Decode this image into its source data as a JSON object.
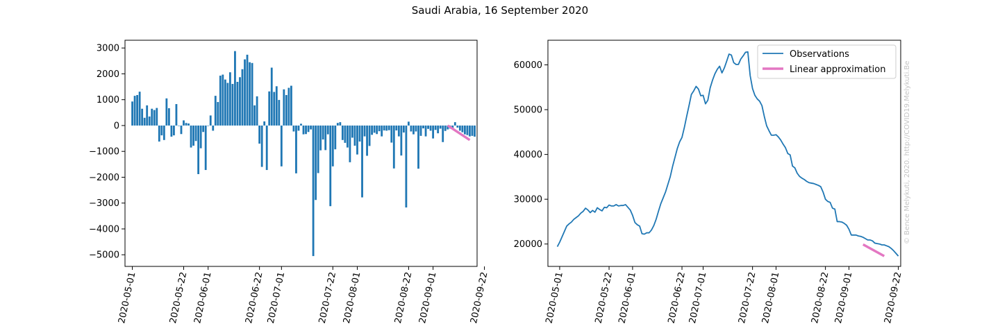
{
  "figure": {
    "title": "Saudi Arabia, 16 September 2020",
    "watermark": "© Bence Melykuti, 2020. http://COVID19.Melykuti.Be"
  },
  "colors": {
    "bars": "#1f77b4",
    "observations": "#1f77b4",
    "approximation": "#e377c2"
  },
  "date_ticks": [
    "2020-05-01",
    "2020-05-22",
    "2020-06-01",
    "2020-06-22",
    "2020-07-01",
    "2020-07-22",
    "2020-08-01",
    "2020-08-22",
    "2020-09-01",
    "2020-09-22"
  ],
  "chart_data": [
    {
      "type": "bar",
      "title": "",
      "xlabel": "",
      "ylabel": "",
      "x_start": "2020-05-01",
      "x_end": "2020-09-16",
      "xlim": [
        "2020-04-28",
        "2020-09-19"
      ],
      "ylim": [
        -5450,
        3300
      ],
      "yticks": [
        3000,
        2000,
        1000,
        0,
        -1000,
        -2000,
        -3000,
        -4000,
        -5000
      ],
      "ytick_labels": [
        "3000",
        "2000",
        "1000",
        "0",
        "−1000",
        "−2000",
        "−3000",
        "−4000",
        "−5000"
      ],
      "grid": false,
      "values": [
        930,
        1150,
        1180,
        1310,
        650,
        300,
        780,
        350,
        650,
        600,
        680,
        -620,
        -380,
        -560,
        1050,
        670,
        -430,
        -380,
        830,
        0,
        -330,
        200,
        100,
        80,
        -850,
        -780,
        -600,
        -1880,
        -880,
        -250,
        -1720,
        0,
        390,
        -200,
        1150,
        910,
        1930,
        1970,
        1780,
        1650,
        2060,
        1610,
        2880,
        1690,
        1870,
        2180,
        2560,
        2740,
        2450,
        2420,
        780,
        1130,
        -700,
        -1600,
        160,
        -1720,
        1320,
        2240,
        1300,
        1520,
        990,
        -1580,
        1400,
        1180,
        1460,
        1540,
        -230,
        -1850,
        -200,
        70,
        -340,
        -330,
        -250,
        -150,
        -5050,
        -2880,
        -1840,
        -960,
        -540,
        -950,
        -340,
        -3120,
        -1580,
        -920,
        100,
        130,
        -560,
        -670,
        -850,
        -1420,
        -470,
        -780,
        -1120,
        -620,
        -2780,
        -420,
        -1170,
        -790,
        -360,
        -280,
        -330,
        -220,
        -420,
        -190,
        -200,
        -180,
        -660,
        -1660,
        -190,
        -420,
        -1160,
        -270,
        -3170,
        150,
        -230,
        -340,
        -230,
        -1670,
        -400,
        -110,
        -420,
        -130,
        -200,
        -500,
        -170,
        -300,
        -120,
        -640,
        -210,
        -150,
        -120,
        -100,
        130,
        -80,
        -200,
        -260,
        -340,
        -370,
        -420,
        -400,
        -430
      ],
      "approx_start": "2020-09-07",
      "approx_end": "2020-09-16",
      "approx_values": [
        0,
        -560
      ]
    },
    {
      "type": "line",
      "title": "",
      "xlabel": "",
      "ylabel": "",
      "xlim": [
        "2020-04-26",
        "2020-09-23"
      ],
      "ylim": [
        15000,
        65500
      ],
      "yticks": [
        60000,
        50000,
        40000,
        30000,
        20000
      ],
      "ytick_labels": [
        "60000",
        "50000",
        "40000",
        "30000",
        "20000"
      ],
      "grid": false,
      "legend": "upper-right",
      "series": [
        {
          "name": "Observations",
          "x_start": "2020-04-30",
          "values": [
            19400,
            20400,
            21600,
            22800,
            24000,
            24500,
            24900,
            25500,
            25900,
            26300,
            26900,
            27300,
            28000,
            27600,
            27000,
            27500,
            27100,
            28100,
            27700,
            27400,
            28200,
            28100,
            28700,
            28500,
            28500,
            28800,
            28500,
            28600,
            28600,
            28800,
            28200,
            27600,
            26400,
            24800,
            24300,
            24000,
            22300,
            22200,
            22500,
            22500,
            23100,
            24100,
            25500,
            27300,
            29000,
            30300,
            31600,
            33300,
            35000,
            37300,
            39300,
            41300,
            42800,
            43800,
            46000,
            48500,
            50900,
            53400,
            54200,
            55200,
            54600,
            53100,
            53200,
            51300,
            52100,
            54900,
            56600,
            58000,
            59000,
            59700,
            58200,
            59300,
            60800,
            62400,
            62200,
            60500,
            60100,
            60100,
            61300,
            62000,
            62800,
            62900,
            57600,
            54700,
            53200,
            52400,
            51900,
            50900,
            48500,
            46400,
            45300,
            44300,
            44300,
            44400,
            43900,
            43200,
            42300,
            41500,
            40200,
            39900,
            37400,
            37000,
            35800,
            35100,
            34700,
            34400,
            34000,
            33700,
            33600,
            33500,
            33300,
            33100,
            32800,
            31600,
            30000,
            29500,
            29300,
            28000,
            27800,
            25000,
            25000,
            24900,
            24600,
            24200,
            23300,
            22000,
            22000,
            22000,
            21800,
            21700,
            21500,
            21200,
            20900,
            20900,
            20700,
            20200,
            20100,
            20000,
            19800,
            19800,
            19600,
            19400,
            19000,
            18500,
            17900,
            17300
          ]
        },
        {
          "name": "Linear approximation",
          "x_start": "2020-09-07",
          "x_end": "2020-09-16",
          "values": [
            19900,
            17300
          ]
        }
      ]
    }
  ]
}
